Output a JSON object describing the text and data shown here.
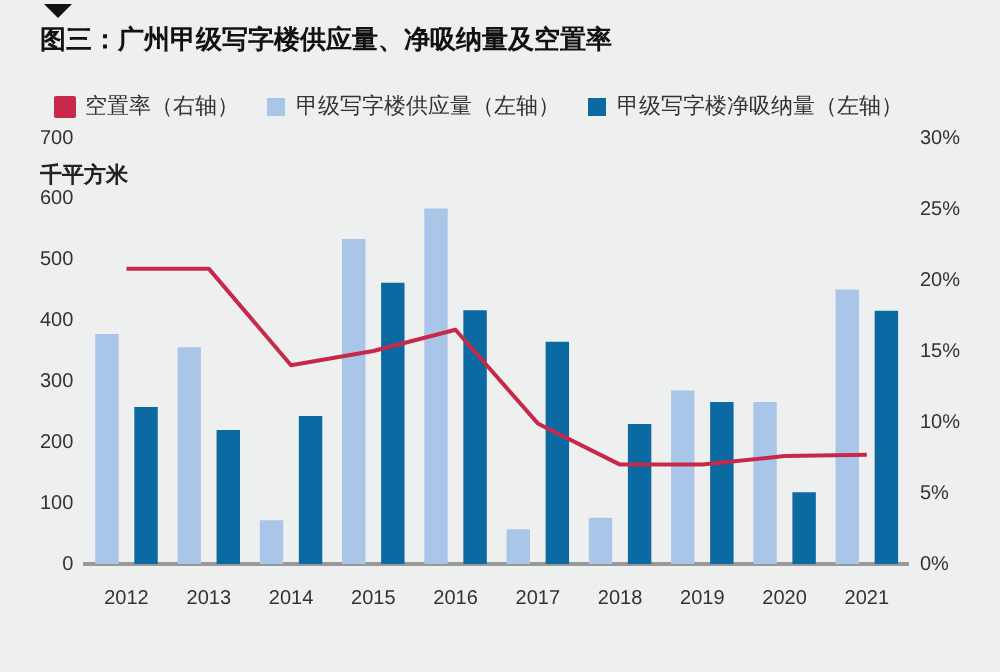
{
  "chart_data": {
    "type": "bar",
    "title": "图三：广州甲级写字楼供应量、净吸纳量及空置率",
    "ylabel": "千平方米",
    "categories": [
      "2012",
      "2013",
      "2014",
      "2015",
      "2016",
      "2017",
      "2018",
      "2019",
      "2020",
      "2021"
    ],
    "series": [
      {
        "name": "甲级写字楼供应量（左轴）",
        "color": "#a9c6e8",
        "values": [
          378,
          356,
          72,
          534,
          584,
          57,
          76,
          285,
          266,
          451
        ]
      },
      {
        "name": "甲级写字楼净吸纳量（左轴）",
        "color": "#0a6aa1",
        "values": [
          258,
          220,
          243,
          462,
          417,
          365,
          230,
          266,
          118,
          416
        ]
      },
      {
        "name": "空置率（右轴）",
        "type": "line",
        "axis": "y2",
        "color": "#c8294a",
        "values": [
          20.8,
          20.8,
          14,
          15,
          16.5,
          9.9,
          7,
          7,
          7.6,
          7.7
        ]
      }
    ],
    "ylim": [
      0,
      700
    ],
    "yticks": [
      0,
      100,
      200,
      300,
      400,
      500,
      600,
      700
    ],
    "y2lim": [
      0,
      30
    ],
    "y2ticks": [
      {
        "value": 0,
        "label": "0%"
      },
      {
        "value": 5,
        "label": "5%"
      },
      {
        "value": 10,
        "label": "10%"
      },
      {
        "value": 15,
        "label": "15%"
      },
      {
        "value": 20,
        "label": "20%"
      },
      {
        "value": 25,
        "label": "25%"
      },
      {
        "value": 30,
        "label": "30%"
      }
    ],
    "grid": false,
    "legend": "top left",
    "marker": "none"
  }
}
